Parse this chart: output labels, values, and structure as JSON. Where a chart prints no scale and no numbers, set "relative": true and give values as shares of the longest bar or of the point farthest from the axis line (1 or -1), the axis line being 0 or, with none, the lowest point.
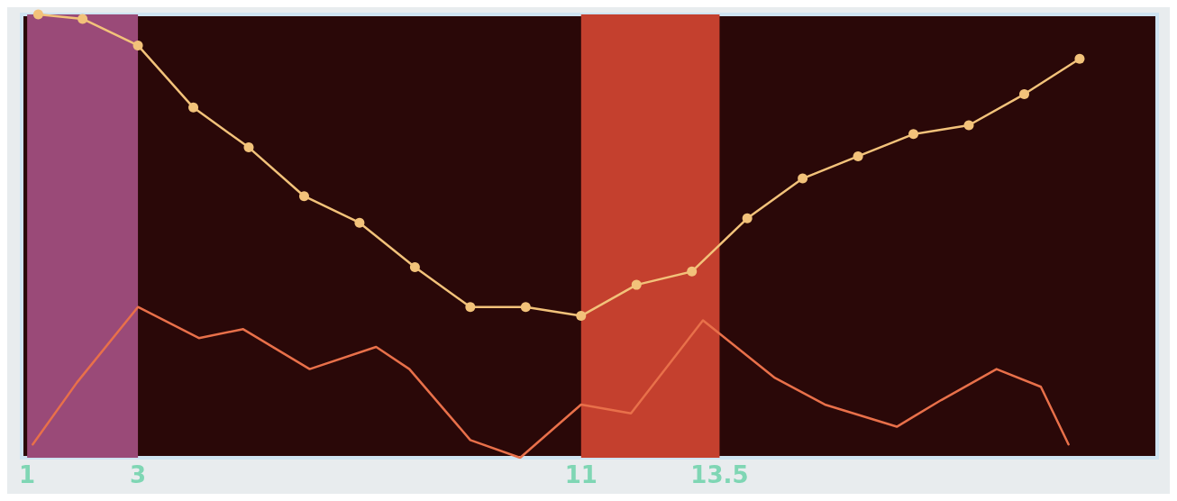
{
  "chart_data": {
    "type": "line",
    "relative": true,
    "xlim": [
      0.9,
      21.4
    ],
    "xticks": [
      1,
      3,
      11,
      13.5
    ],
    "grid": false,
    "line_style": "solid",
    "bands": [
      {
        "axis": "x",
        "from": 1,
        "to": 3,
        "color": "#9a4a78"
      },
      {
        "axis": "x",
        "from": 11,
        "to": 13.5,
        "color": "#c4402e"
      }
    ],
    "series": [
      {
        "color": "#f2c27a",
        "marker": "circle",
        "x": [
          1.2,
          2,
          3,
          4,
          5,
          6,
          7,
          8,
          9,
          10,
          11,
          12,
          13,
          14,
          15,
          16,
          17,
          18,
          19,
          20
        ],
        "values": [
          1,
          0.99,
          0.93,
          0.79,
          0.7,
          0.59,
          0.53,
          0.43,
          0.34,
          0.34,
          0.32,
          0.39,
          0.42,
          0.54,
          0.63,
          0.68,
          0.73,
          0.75,
          0.82,
          0.9
        ]
      },
      {
        "color": "#e8704a",
        "marker": "none",
        "x": [
          1.1,
          1.9,
          3,
          4.1,
          4.9,
          6.1,
          7.3,
          7.9,
          9,
          9.9,
          11,
          11.9,
          13.2,
          14.5,
          15.4,
          16.7,
          17.5,
          18.5,
          19.3,
          19.8
        ],
        "values": [
          0.03,
          0.17,
          0.34,
          0.27,
          0.29,
          0.2,
          0.25,
          0.2,
          0.04,
          0,
          0.12,
          0.1,
          0.31,
          0.18,
          0.12,
          0.07,
          0.13,
          0.2,
          0.16,
          0.03
        ]
      }
    ]
  }
}
